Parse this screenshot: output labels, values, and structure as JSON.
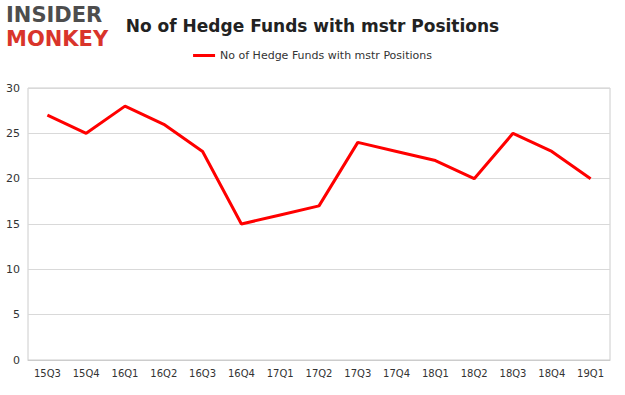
{
  "chart_data": {
    "type": "line",
    "title": "No of Hedge Funds with mstr Positions",
    "annotations": [
      "INSIDER",
      "MONKEY"
    ],
    "categories": [
      "15Q3",
      "15Q4",
      "16Q1",
      "16Q2",
      "16Q3",
      "16Q4",
      "17Q1",
      "17Q2",
      "17Q3",
      "17Q4",
      "18Q1",
      "18Q2",
      "18Q3",
      "18Q4",
      "19Q1"
    ],
    "series": [
      {
        "name": "No of Hedge Funds with mstr Positions",
        "color": "#ff0000",
        "values": [
          27,
          25,
          28,
          26,
          23,
          15,
          16,
          17,
          24,
          23,
          22,
          20,
          25,
          23,
          20
        ]
      }
    ],
    "ylim": [
      0,
      30
    ],
    "yticks": [
      0,
      5,
      10,
      15,
      20,
      25,
      30
    ],
    "grid": true,
    "legend": "top"
  }
}
